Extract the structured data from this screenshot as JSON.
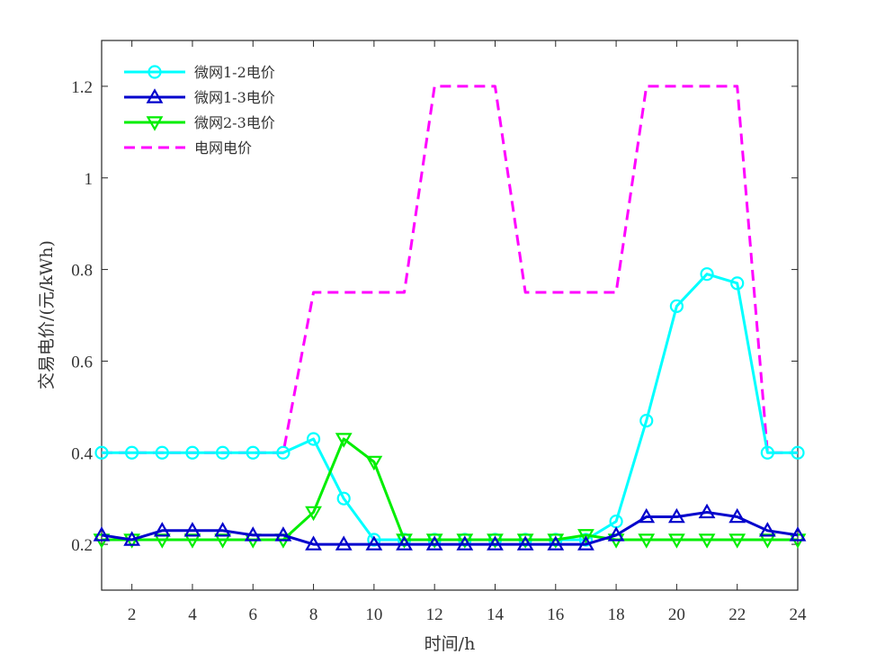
{
  "chart_data": {
    "type": "line",
    "xlabel": "时间/h",
    "ylabel": "交易电价/(元/kWh)",
    "xlim": [
      1,
      24
    ],
    "ylim": [
      0.1,
      1.3
    ],
    "xticks": [
      2,
      4,
      6,
      8,
      10,
      12,
      14,
      16,
      18,
      20,
      22,
      24
    ],
    "yticks": [
      0.2,
      0.4,
      0.6,
      0.8,
      1,
      1.2
    ],
    "ytick_labels": [
      "0.2",
      "0.4",
      "0.6",
      "0.8",
      "1",
      "1.2"
    ],
    "grid": false,
    "legend_position": "top-left",
    "x": [
      1,
      2,
      3,
      4,
      5,
      6,
      7,
      8,
      9,
      10,
      11,
      12,
      13,
      14,
      15,
      16,
      17,
      18,
      19,
      20,
      21,
      22,
      23,
      24
    ],
    "series": [
      {
        "name": "微网1-2电价",
        "color": "#00FFFF",
        "marker": "circle",
        "dash": "solid",
        "values": [
          0.4,
          0.4,
          0.4,
          0.4,
          0.4,
          0.4,
          0.4,
          0.43,
          0.3,
          0.21,
          0.21,
          0.21,
          0.21,
          0.21,
          0.21,
          0.21,
          0.21,
          0.25,
          0.47,
          0.72,
          0.79,
          0.77,
          0.4,
          0.4
        ]
      },
      {
        "name": "微网1-3电价",
        "color": "#0000CC",
        "marker": "triangle-up",
        "dash": "solid",
        "values": [
          0.22,
          0.21,
          0.23,
          0.23,
          0.23,
          0.22,
          0.22,
          0.2,
          0.2,
          0.2,
          0.2,
          0.2,
          0.2,
          0.2,
          0.2,
          0.2,
          0.2,
          0.22,
          0.26,
          0.26,
          0.27,
          0.26,
          0.23,
          0.22
        ]
      },
      {
        "name": "微网2-3电价",
        "color": "#00EE00",
        "marker": "triangle-down",
        "dash": "solid",
        "values": [
          0.21,
          0.21,
          0.21,
          0.21,
          0.21,
          0.21,
          0.21,
          0.27,
          0.43,
          0.38,
          0.21,
          0.21,
          0.21,
          0.21,
          0.21,
          0.21,
          0.22,
          0.21,
          0.21,
          0.21,
          0.21,
          0.21,
          0.21,
          0.21
        ]
      },
      {
        "name": "电网电价",
        "color": "#FF00FF",
        "marker": "none",
        "dash": "dashed",
        "values": [
          0.4,
          0.4,
          0.4,
          0.4,
          0.4,
          0.4,
          0.4,
          0.75,
          0.75,
          0.75,
          0.75,
          1.2,
          1.2,
          1.2,
          0.75,
          0.75,
          0.75,
          0.75,
          1.2,
          1.2,
          1.2,
          1.2,
          0.4,
          0.4
        ]
      }
    ]
  }
}
